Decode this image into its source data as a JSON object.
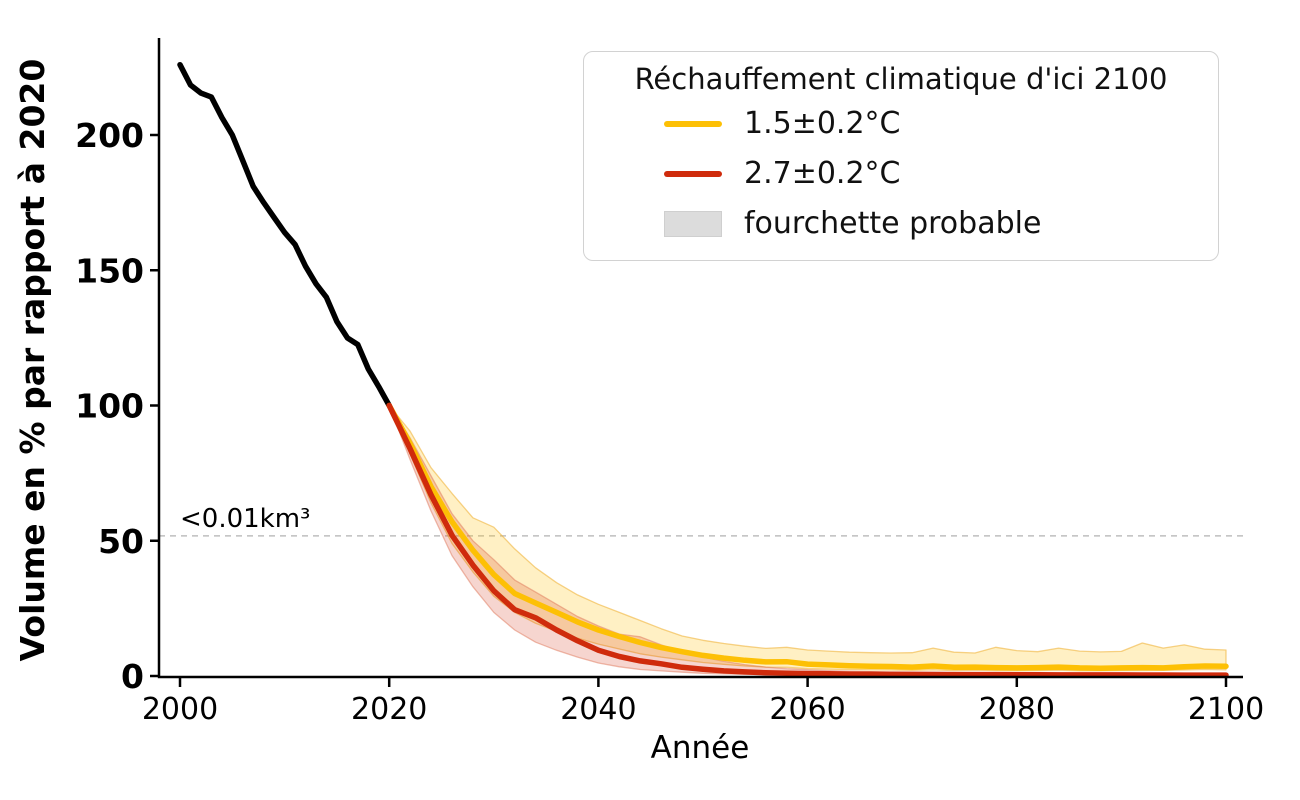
{
  "chart_data": {
    "type": "line",
    "title": "",
    "xlabel": "Année",
    "ylabel": "Volume en % par rapport à 2020",
    "xlim": [
      1998,
      2101.6
    ],
    "ylim": [
      0,
      236
    ],
    "xticks": [
      2000,
      2020,
      2040,
      2060,
      2080,
      2100
    ],
    "yticks": [
      0,
      50,
      100,
      150,
      200
    ],
    "grid": false,
    "threshold": {
      "label": "<0.01km³",
      "value": 51.8,
      "line_color": "#bfbfbf",
      "text_color": "#a3a3a3"
    },
    "legend": {
      "position": "upper right",
      "title": "Réchauffement climatique d'ici 2100",
      "entries": [
        {
          "label": "1.5±0.2°C",
          "swatch": "line",
          "color": "#fdc005"
        },
        {
          "label": "2.7±0.2°C",
          "swatch": "line",
          "color": "#cf2b0c"
        },
        {
          "label": "fourchette probable",
          "swatch": "patch",
          "color": "#dcdcdc"
        }
      ]
    },
    "series": [
      {
        "name": "historique",
        "color": "#000000",
        "x": [
          2000,
          2001,
          2002,
          2003,
          2004,
          2005,
          2006,
          2007,
          2008,
          2009,
          2010,
          2011,
          2012,
          2013,
          2014,
          2015,
          2016,
          2017,
          2018,
          2019,
          2020
        ],
        "y": [
          226,
          218.5,
          215.5,
          214,
          206.5,
          200,
          190.5,
          181,
          175,
          169.5,
          164,
          159.5,
          151.5,
          145,
          140,
          131,
          125,
          122.5,
          113.5,
          107,
          100
        ]
      },
      {
        "name": "1.5±0.2°C",
        "color": "#fdc005",
        "band_color": "rgba(255,196,18,0.25)",
        "band_edge": "rgba(240,180,60,0.6)",
        "x": [
          2020,
          2022,
          2024,
          2026,
          2028,
          2030,
          2032,
          2034,
          2036,
          2038,
          2040,
          2042,
          2044,
          2046,
          2048,
          2050,
          2052,
          2054,
          2056,
          2058,
          2060,
          2062,
          2064,
          2066,
          2068,
          2070,
          2072,
          2074,
          2076,
          2078,
          2080,
          2082,
          2084,
          2086,
          2088,
          2090,
          2092,
          2094,
          2096,
          2098,
          2100
        ],
        "y": [
          100,
          86,
          70,
          57,
          46.5,
          37.5,
          30.5,
          27,
          23.5,
          20,
          17,
          14.6,
          12.4,
          10.5,
          9.0,
          7.6,
          6.6,
          5.8,
          5.2,
          5.3,
          4.4,
          4.1,
          3.8,
          3.6,
          3.5,
          3.3,
          3.7,
          3.2,
          3.3,
          3.1,
          3.0,
          3.1,
          3.3,
          3.0,
          2.9,
          3.0,
          3.1,
          3.0,
          3.4,
          3.7,
          3.6
        ],
        "lo": [
          100,
          82,
          64,
          49,
          38.5,
          29.5,
          23.5,
          19.5,
          16.5,
          14,
          11.8,
          10,
          8.2,
          7.0,
          6.0,
          5.0,
          4.3,
          3.7,
          3.3,
          3.2,
          2.7,
          2.5,
          2.4,
          2.3,
          2.2,
          2.1,
          2.3,
          2.0,
          2.1,
          2.0,
          1.9,
          2.0,
          2.1,
          1.9,
          1.9,
          2.0,
          2.0,
          2.1,
          2.2,
          2.4,
          2.3
        ],
        "hi": [
          100,
          90.5,
          77,
          67.5,
          58.5,
          55,
          47,
          40,
          34.5,
          30,
          26.5,
          23.5,
          20.5,
          17.5,
          14.8,
          13.2,
          12.0,
          11.0,
          10.2,
          10.6,
          9.6,
          9.2,
          8.8,
          8.6,
          8.5,
          8.6,
          10.3,
          8.8,
          8.5,
          10.6,
          9.4,
          9.0,
          10.3,
          9.2,
          8.9,
          9.1,
          12.2,
          10.3,
          11.5,
          9.9,
          9.6
        ]
      },
      {
        "name": "2.7±0.2°C",
        "color": "#cf2b0c",
        "band_color": "rgba(208,45,14,0.2)",
        "band_edge": "rgba(224,120,90,0.5)",
        "x": [
          2020,
          2022,
          2024,
          2026,
          2028,
          2030,
          2032,
          2034,
          2036,
          2038,
          2040,
          2042,
          2044,
          2046,
          2048,
          2050,
          2052,
          2054,
          2056,
          2058,
          2060,
          2062,
          2064,
          2066,
          2068,
          2070,
          2072,
          2074,
          2076,
          2078,
          2080,
          2082,
          2084,
          2086,
          2088,
          2090,
          2092,
          2094,
          2096,
          2098,
          2100
        ],
        "y": [
          100,
          84,
          67,
          52,
          41,
          31.5,
          24.5,
          21.5,
          17,
          13,
          9.5,
          7.2,
          5.6,
          4.5,
          3.2,
          2.5,
          1.9,
          1.5,
          1.2,
          1.0,
          0.9,
          0.8,
          0.7,
          0.7,
          0.6,
          0.6,
          0.55,
          0.5,
          0.5,
          0.5,
          0.45,
          0.45,
          0.4,
          0.4,
          0.4,
          0.4,
          0.38,
          0.36,
          0.35,
          0.35,
          0.35
        ],
        "lo": [
          100,
          80,
          61,
          44.5,
          33,
          23.5,
          17,
          12.5,
          9.5,
          7,
          4.8,
          3.4,
          2.4,
          1.9,
          1.4,
          1.0,
          0.8,
          0.6,
          0.5,
          0.4,
          0.3,
          0.3,
          0.25,
          0.2,
          0.2,
          0.2,
          0.18,
          0.16,
          0.15,
          0.15,
          0.14,
          0.13,
          0.12,
          0.12,
          0.11,
          0.1,
          0.1,
          0.1,
          0.1,
          0.1,
          0.1
        ],
        "hi": [
          100,
          88,
          74,
          60,
          50,
          43,
          35.5,
          31,
          26.5,
          22,
          18.5,
          15.5,
          14.5,
          11.5,
          9,
          7,
          5.4,
          4.2,
          3.3,
          2.7,
          2.3,
          2.0,
          1.8,
          1.6,
          1.5,
          1.4,
          1.35,
          1.3,
          1.25,
          1.2,
          1.15,
          1.1,
          1.1,
          1.05,
          1.0,
          1.0,
          0.95,
          0.9,
          0.9,
          0.85,
          0.85
        ]
      }
    ]
  }
}
